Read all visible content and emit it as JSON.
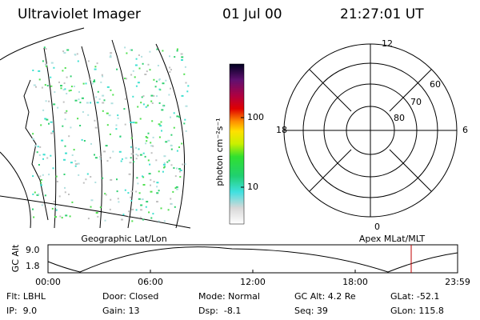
{
  "header": {
    "title": "Ultraviolet Imager",
    "date": "01 Jul 00",
    "time": "21:27:01 UT"
  },
  "colorbar": {
    "label": "photon cm⁻²s⁻¹",
    "ticks": [
      "100",
      "10"
    ]
  },
  "polar": {
    "mlt_labels": [
      "12",
      "18",
      "6",
      "0"
    ],
    "lat_labels": [
      "60",
      "70",
      "80"
    ]
  },
  "panel_labels": {
    "left": "Geographic Lat/Lon",
    "right": "Apex MLat/MLT"
  },
  "altitude_plot": {
    "ylabel": "GC Alt",
    "yticks": [
      "9.0",
      "1.8"
    ],
    "xticks": [
      "00:00",
      "06:00",
      "12:00",
      "18:00",
      "23:59"
    ]
  },
  "footer": [
    [
      "Flt: LBHL",
      "IP:  9.0"
    ],
    [
      "Door: Closed",
      "Gain: 13"
    ],
    [
      "Mode: Normal",
      "Dsp:  -8.1"
    ],
    [
      "GC Alt: 4.2 Re",
      "Seq: 39"
    ],
    [
      "GLat: -52.1",
      "GLon: 115.8"
    ]
  ]
}
